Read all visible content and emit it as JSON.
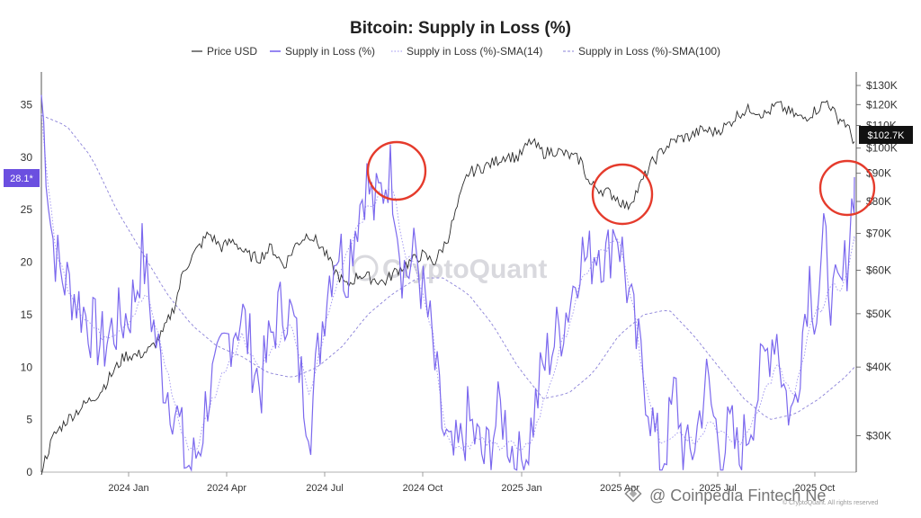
{
  "chart_data": {
    "type": "line",
    "title": "Bitcoin: Supply in Loss (%)",
    "legend": {
      "placement": "top-center",
      "entries": [
        {
          "label": "Price USD",
          "style": "solid-black"
        },
        {
          "label": "Supply in Loss (%)",
          "style": "solid-purple"
        },
        {
          "label": "Supply in Loss (%)-SMA(14)",
          "style": "dotted-purple"
        },
        {
          "label": "Supply in Loss (%)-SMA(100)",
          "style": "dashed-purple"
        }
      ]
    },
    "x_ticks": [
      "2024 Jan",
      "2024 Apr",
      "2024 Jul",
      "2024 Oct",
      "2025 Jan",
      "2025 Apr",
      "2025 Jul",
      "2025 Oct"
    ],
    "y_left": {
      "ticks": [
        0,
        5,
        10,
        15,
        20,
        25,
        30,
        35
      ],
      "range": [
        0,
        36
      ]
    },
    "y_right": {
      "scale": "log",
      "ticks": [
        "$30K",
        "$40K",
        "$50K",
        "$60K",
        "$70K",
        "$80K",
        "$90K",
        "$100K",
        "$110K",
        "$120K",
        "$130K"
      ],
      "tick_values": [
        30,
        40,
        50,
        60,
        70,
        80,
        90,
        100,
        110,
        120,
        130
      ],
      "range": [
        25,
        135
      ],
      "unit": "K USD"
    },
    "current_supply_label": "28.1*",
    "current_price_label": "$102.7K",
    "grid": false,
    "series": [
      {
        "name": "Supply in Loss (%)",
        "axis": "left",
        "keypoints": [
          [
            0,
            36
          ],
          [
            1.2,
            23
          ],
          [
            2.2,
            19
          ],
          [
            3.6,
            17.5
          ],
          [
            4.5,
            16
          ],
          [
            5.3,
            15
          ],
          [
            6.2,
            13.5
          ],
          [
            7.4,
            12
          ],
          [
            8.4,
            13.5
          ],
          [
            9.6,
            14.5
          ],
          [
            10.4,
            15
          ],
          [
            11.3,
            17.5
          ],
          [
            12.1,
            21
          ],
          [
            12.8,
            17
          ],
          [
            13.6,
            13
          ],
          [
            14.6,
            9
          ],
          [
            15.6,
            7
          ],
          [
            16.6,
            4
          ],
          [
            17.2,
            1
          ],
          [
            18.0,
            0.4
          ],
          [
            19.0,
            3
          ],
          [
            20.0,
            8
          ],
          [
            21.0,
            9
          ],
          [
            22.0,
            12
          ],
          [
            23.0,
            14
          ],
          [
            24.0,
            15
          ],
          [
            25.2,
            11
          ],
          [
            26.2,
            8
          ],
          [
            27.2,
            12
          ],
          [
            28.2,
            15
          ],
          [
            29.2,
            16
          ],
          [
            30.2,
            14
          ],
          [
            31.2,
            8
          ],
          [
            32.2,
            5
          ],
          [
            33.2,
            12
          ],
          [
            34.2,
            18
          ],
          [
            35.4,
            22
          ],
          [
            36.4,
            19
          ],
          [
            37.6,
            24
          ],
          [
            38.8,
            28
          ],
          [
            39.8,
            25
          ],
          [
            40.8,
            27
          ],
          [
            41.6,
            29
          ],
          [
            42.4,
            26
          ],
          [
            43.0,
            20
          ],
          [
            43.8,
            19
          ],
          [
            44.8,
            21
          ],
          [
            45.6,
            17
          ],
          [
            46.4,
            14
          ],
          [
            47.2,
            9
          ],
          [
            48.0,
            4
          ],
          [
            49.0,
            1
          ],
          [
            50.0,
            2
          ],
          [
            51.0,
            5
          ],
          [
            52.0,
            3
          ],
          [
            53.0,
            1
          ],
          [
            54.0,
            4
          ],
          [
            55.0,
            6
          ],
          [
            56.0,
            3
          ],
          [
            57.0,
            0.5
          ],
          [
            58.0,
            2
          ],
          [
            59.0,
            6
          ],
          [
            60.0,
            10
          ],
          [
            61.0,
            12
          ],
          [
            62.2,
            14
          ],
          [
            63.4,
            17
          ],
          [
            64.4,
            21
          ],
          [
            65.4,
            20
          ],
          [
            66.6,
            22
          ],
          [
            67.6,
            20
          ],
          [
            68.6,
            24
          ],
          [
            69.4,
            21
          ],
          [
            70.2,
            17
          ],
          [
            71.0,
            13
          ],
          [
            71.8,
            10
          ],
          [
            72.6,
            7
          ],
          [
            73.4,
            3
          ],
          [
            74.2,
            1
          ],
          [
            75.0,
            4
          ],
          [
            75.8,
            8
          ],
          [
            76.6,
            3
          ],
          [
            77.4,
            1
          ],
          [
            78.4,
            4
          ],
          [
            79.4,
            9
          ],
          [
            80.4,
            5
          ],
          [
            81.4,
            2
          ],
          [
            82.4,
            4
          ],
          [
            83.4,
            1
          ],
          [
            84.4,
            4
          ],
          [
            85.4,
            7
          ],
          [
            86.6,
            11
          ],
          [
            87.8,
            14
          ],
          [
            88.8,
            8
          ],
          [
            89.8,
            5
          ],
          [
            90.8,
            12
          ],
          [
            91.8,
            19
          ],
          [
            92.6,
            15
          ],
          [
            93.6,
            22
          ],
          [
            94.6,
            16
          ],
          [
            95.6,
            17
          ],
          [
            96.4,
            21
          ],
          [
            97.2,
            28.1
          ]
        ]
      },
      {
        "name": "Supply in Loss (%)-SMA(14)",
        "axis": "left",
        "keypoints": [
          [
            0,
            34
          ],
          [
            1.5,
            22
          ],
          [
            3,
            18
          ],
          [
            5,
            15
          ],
          [
            7,
            13
          ],
          [
            9,
            13.5
          ],
          [
            11,
            15
          ],
          [
            12.5,
            17
          ],
          [
            14,
            13
          ],
          [
            15.5,
            8
          ],
          [
            17,
            3
          ],
          [
            18.5,
            2
          ],
          [
            20,
            6
          ],
          [
            22,
            10
          ],
          [
            24,
            13
          ],
          [
            26,
            10
          ],
          [
            28,
            12
          ],
          [
            30,
            14
          ],
          [
            32,
            7
          ],
          [
            34,
            14
          ],
          [
            36,
            20
          ],
          [
            38,
            24
          ],
          [
            40,
            26
          ],
          [
            42,
            27
          ],
          [
            43.5,
            21
          ],
          [
            45.5,
            18
          ],
          [
            47,
            12
          ],
          [
            48.5,
            3
          ],
          [
            50,
            2.5
          ],
          [
            52,
            3
          ],
          [
            54,
            2.5
          ],
          [
            56,
            3
          ],
          [
            57.5,
            1.5
          ],
          [
            59,
            4
          ],
          [
            61,
            9
          ],
          [
            63,
            14
          ],
          [
            65,
            19
          ],
          [
            67,
            21
          ],
          [
            69,
            22
          ],
          [
            70.5,
            17
          ],
          [
            72,
            9
          ],
          [
            74,
            3
          ],
          [
            76,
            4
          ],
          [
            78,
            3
          ],
          [
            80,
            5
          ],
          [
            82,
            3
          ],
          [
            84,
            3
          ],
          [
            86,
            7
          ],
          [
            88,
            10
          ],
          [
            90,
            7
          ],
          [
            92,
            14
          ],
          [
            94,
            17
          ],
          [
            96,
            18
          ],
          [
            97.2,
            22
          ]
        ]
      },
      {
        "name": "Supply in Loss (%)-SMA(100)",
        "axis": "left",
        "keypoints": [
          [
            0,
            34
          ],
          [
            3,
            33
          ],
          [
            6,
            30
          ],
          [
            9,
            25
          ],
          [
            12,
            21
          ],
          [
            15,
            17
          ],
          [
            18,
            14
          ],
          [
            21,
            12
          ],
          [
            24,
            11
          ],
          [
            27,
            9.5
          ],
          [
            30,
            9
          ],
          [
            33,
            10
          ],
          [
            36,
            12
          ],
          [
            39,
            15
          ],
          [
            42,
            17
          ],
          [
            45,
            18.5
          ],
          [
            48,
            18.5
          ],
          [
            51,
            17
          ],
          [
            54,
            14
          ],
          [
            57,
            10
          ],
          [
            60,
            7
          ],
          [
            63,
            7.5
          ],
          [
            66,
            9.5
          ],
          [
            69,
            13
          ],
          [
            72,
            15
          ],
          [
            75,
            15.5
          ],
          [
            78,
            13
          ],
          [
            81,
            10
          ],
          [
            84,
            7
          ],
          [
            87,
            5
          ],
          [
            90,
            5.5
          ],
          [
            93,
            7
          ],
          [
            96,
            9
          ],
          [
            97.2,
            10
          ]
        ]
      },
      {
        "name": "Price USD",
        "axis": "right",
        "unit": "K USD",
        "keypoints": [
          [
            0,
            26
          ],
          [
            1.5,
            30
          ],
          [
            3,
            32
          ],
          [
            5,
            34
          ],
          [
            7,
            36
          ],
          [
            8.5,
            39
          ],
          [
            10,
            42
          ],
          [
            11.5,
            42
          ],
          [
            13,
            43
          ],
          [
            14.5,
            46
          ],
          [
            16,
            52
          ],
          [
            17,
            60
          ],
          [
            18.5,
            65
          ],
          [
            20,
            70
          ],
          [
            21.5,
            66
          ],
          [
            23,
            68
          ],
          [
            24.5,
            64
          ],
          [
            26,
            63
          ],
          [
            27.5,
            66
          ],
          [
            29,
            61
          ],
          [
            30.5,
            67
          ],
          [
            32,
            70
          ],
          [
            33.5,
            66
          ],
          [
            35,
            60
          ],
          [
            36.5,
            56
          ],
          [
            38,
            59
          ],
          [
            39.5,
            58
          ],
          [
            41,
            57
          ],
          [
            42.5,
            60
          ],
          [
            44,
            62
          ],
          [
            45.5,
            64
          ],
          [
            47,
            62
          ],
          [
            48.5,
            68
          ],
          [
            49.5,
            76
          ],
          [
            51,
            90
          ],
          [
            52.5,
            92
          ],
          [
            54,
            94
          ],
          [
            55.5,
            97
          ],
          [
            57,
            96
          ],
          [
            58.5,
            103
          ],
          [
            60,
            98
          ],
          [
            61.5,
            99
          ],
          [
            63,
            97
          ],
          [
            64.5,
            95
          ],
          [
            65.5,
            86
          ],
          [
            67,
            84
          ],
          [
            68.5,
            82
          ],
          [
            70,
            78
          ],
          [
            71.5,
            85
          ],
          [
            73,
            94
          ],
          [
            74.5,
            100
          ],
          [
            76,
            104
          ],
          [
            77.5,
            105
          ],
          [
            79,
            108
          ],
          [
            80.5,
            107
          ],
          [
            82,
            110
          ],
          [
            83.5,
            116
          ],
          [
            85,
            118
          ],
          [
            86.5,
            115
          ],
          [
            88,
            120
          ],
          [
            89.5,
            116
          ],
          [
            91,
            113
          ],
          [
            92.5,
            117
          ],
          [
            94,
            122
          ],
          [
            95,
            114
          ],
          [
            96,
            112
          ],
          [
            97.2,
            102.7
          ]
        ]
      }
    ],
    "annotations": [
      {
        "type": "circle",
        "color": "#e53b2c",
        "near": "2024 Sep peak"
      },
      {
        "type": "circle",
        "color": "#e53b2c",
        "near": "2025 Apr peak"
      },
      {
        "type": "circle",
        "color": "#e53b2c",
        "near": "latest value"
      }
    ],
    "colors": {
      "price": "#2b2b2b",
      "supply": "#7b68ee",
      "sma14": "#9d92f0",
      "sma100": "#8a80d8",
      "badge_supply": "#6b4fe0",
      "badge_price": "#111111",
      "annotation": "#e53b2c"
    }
  },
  "watermark": "CryptoQuant",
  "footer": "@ Coinpedia Fintech Ne",
  "credit": "© CryptoQuant. All rights reserved"
}
